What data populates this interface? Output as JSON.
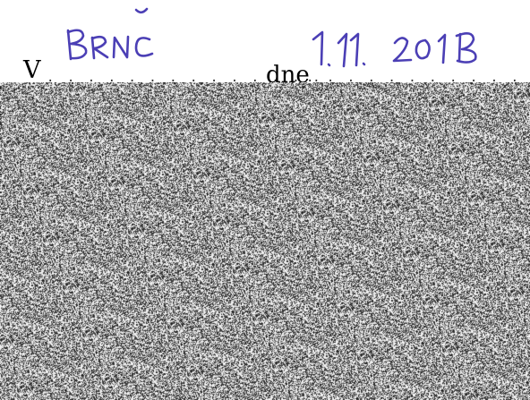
{
  "document": {
    "place_prefix": "V",
    "date_prefix": "dne",
    "handwritten_place": "Brno",
    "handwritten_date": "1. 11. 2018",
    "blank_dots_place": "· · · · · · · · · · · · · ·",
    "blank_dots_date": "· · · · · · · · · · · ·"
  },
  "colors": {
    "ink_handwriting": "#4b3fb5",
    "print": "#000000",
    "noise_dark": "#1a1a1a",
    "noise_light": "#ffffff"
  }
}
